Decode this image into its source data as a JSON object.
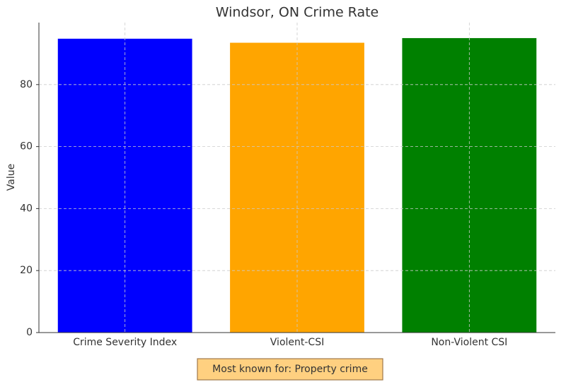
{
  "chart_data": {
    "type": "bar",
    "title": "Windsor, ON Crime Rate",
    "ylabel": "Value",
    "categories": [
      "Crime Severity Index",
      "Violent-CSI",
      "Non-Violent CSI"
    ],
    "values": [
      94.8,
      93.5,
      95.0
    ],
    "colors": [
      "#0000ff",
      "#ffa500",
      "#008000"
    ],
    "ylim": [
      0,
      100
    ],
    "yticks": [
      0,
      20,
      40,
      60,
      80
    ],
    "grid": true,
    "annotation": "Most known for: Property crime"
  }
}
